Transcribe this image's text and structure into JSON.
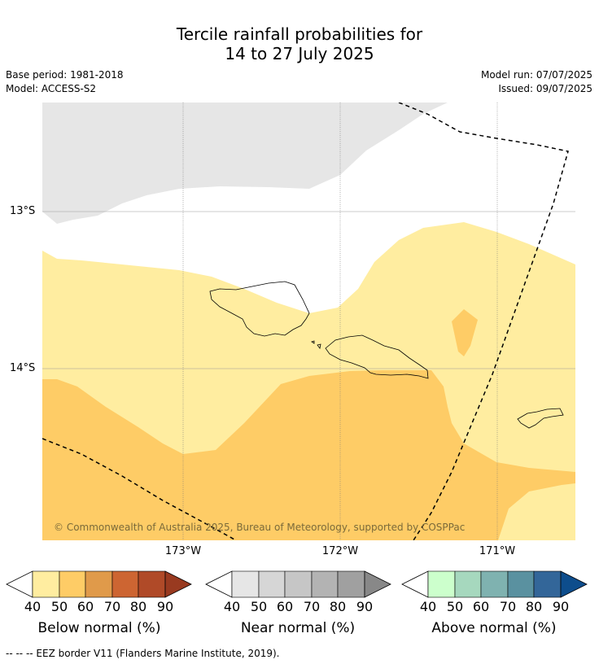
{
  "header": {
    "title_line1": "Tercile rainfall probabilities for",
    "title_line2": "14 to 27 July 2025",
    "base_period": "Base period: 1981-2018",
    "model": "Model: ACCESS-S2",
    "model_run": "Model run: 07/07/2025",
    "issued": "Issued: 09/07/2025"
  },
  "map": {
    "lat_labels": [
      "13°S",
      "14°S"
    ],
    "lon_labels": [
      "173°W",
      "172°W",
      "171°W"
    ],
    "copyright": "© Commonwealth of Australia 2025, Bureau of Meteorology, supported by COSPPac",
    "colors": {
      "below_40_50": "#ffeda0",
      "below_50_60": "#fecc66",
      "near_40_50": "#e6e6e6",
      "eez_line": "#000000"
    }
  },
  "colorbars": [
    {
      "label": "Below normal (%)",
      "ticks": [
        "40",
        "50",
        "60",
        "70",
        "80",
        "90"
      ],
      "colors": [
        "#ffeda0",
        "#fecc66",
        "#e09a4a",
        "#cd6532",
        "#b04a28",
        "#993a20"
      ]
    },
    {
      "label": "Near normal (%)",
      "ticks": [
        "40",
        "50",
        "60",
        "70",
        "80",
        "90"
      ],
      "colors": [
        "#e6e6e6",
        "#d6d6d6",
        "#c6c6c6",
        "#b3b3b3",
        "#a0a0a0",
        "#888888"
      ]
    },
    {
      "label": "Above normal (%)",
      "ticks": [
        "40",
        "50",
        "60",
        "70",
        "80",
        "90"
      ],
      "colors": [
        "#ccffcc",
        "#a6d8be",
        "#7fb2b0",
        "#5a91a0",
        "#336699",
        "#0d4d8c"
      ]
    }
  ],
  "footer": {
    "legend_text": "--  --  -- EEZ border V11 (Flanders Marine Institute, 2019)."
  }
}
